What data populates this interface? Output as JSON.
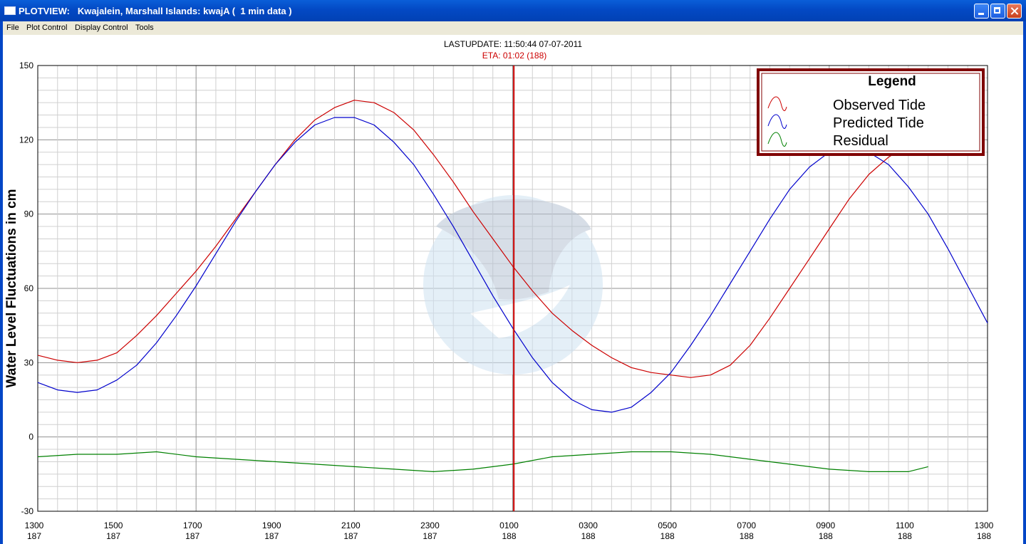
{
  "window": {
    "title": "PLOTVIEW:   Kwajalein, Marshall Islands: kwajA (  1 min data )",
    "menu": [
      "File",
      "Plot Control",
      "Display Control",
      "Tools"
    ]
  },
  "chart_data": {
    "type": "line",
    "header_text": "LASTUPDATE: 11:50:44  07-07-2011",
    "eta_text": "ETA: 01:02 (188)",
    "ylabel": "Water Level Fluctuations in cm",
    "ylim": [
      -30,
      150
    ],
    "y_ticks": [
      150,
      120,
      90,
      60,
      30,
      0,
      -30
    ],
    "x_tick_labels": [
      [
        "1300",
        "187"
      ],
      [
        "1500",
        "187"
      ],
      [
        "1700",
        "187"
      ],
      [
        "1900",
        "187"
      ],
      [
        "2100",
        "187"
      ],
      [
        "2300",
        "187"
      ],
      [
        "0100",
        "188"
      ],
      [
        "0300",
        "188"
      ],
      [
        "0500",
        "188"
      ],
      [
        "0700",
        "188"
      ],
      [
        "0900",
        "188"
      ],
      [
        "1100",
        "188"
      ],
      [
        "1300",
        "188"
      ]
    ],
    "x_unit": "hours since 1300 day 187",
    "xlim": [
      0,
      24
    ],
    "eta_marker_x": 12.03,
    "grid": true,
    "legend": {
      "title": "Legend",
      "position": "top-right",
      "entries": [
        "Observed Tide",
        "Predicted Tide",
        "Residual"
      ]
    },
    "colors": {
      "observed": "#cc0000",
      "predicted": "#0000cc",
      "residual": "#008000",
      "eta_line": "#cc0000",
      "legend_border": "#800000"
    },
    "series": [
      {
        "name": "Observed Tide",
        "x": [
          0,
          0.5,
          1,
          1.5,
          2,
          2.5,
          3,
          3.5,
          4,
          4.5,
          5,
          5.5,
          6,
          6.5,
          7,
          7.5,
          8,
          8.5,
          9,
          9.5,
          10,
          10.5,
          11,
          11.5,
          12,
          12.5,
          13,
          13.5,
          14,
          14.5,
          15,
          15.5,
          16,
          16.5,
          17,
          17.5,
          18,
          18.5,
          19,
          19.5,
          20,
          20.5,
          21,
          21.5,
          22,
          22.5
        ],
        "y": [
          33,
          31,
          30,
          31,
          34,
          41,
          49,
          58,
          67,
          77,
          88,
          99,
          110,
          120,
          128,
          133,
          136,
          135,
          131,
          124,
          114,
          103,
          91,
          80,
          69,
          59,
          50,
          43,
          37,
          32,
          28,
          26,
          25,
          24,
          25,
          29,
          37,
          48,
          60,
          72,
          84,
          96,
          106,
          113,
          118,
          121
        ]
      },
      {
        "name": "Predicted Tide",
        "x": [
          0,
          0.5,
          1,
          1.5,
          2,
          2.5,
          3,
          3.5,
          4,
          4.5,
          5,
          5.5,
          6,
          6.5,
          7,
          7.5,
          8,
          8.5,
          9,
          9.5,
          10,
          10.5,
          11,
          11.5,
          12,
          12.5,
          13,
          13.5,
          14,
          14.5,
          15,
          15.5,
          16,
          16.5,
          17,
          17.5,
          18,
          18.5,
          19,
          19.5,
          20,
          20.5,
          21,
          21.5,
          22,
          22.5,
          23,
          23.5,
          24
        ],
        "y": [
          22,
          19,
          18,
          19,
          23,
          29,
          38,
          49,
          61,
          74,
          87,
          99,
          110,
          119,
          126,
          129,
          129,
          126,
          119,
          110,
          98,
          85,
          71,
          57,
          44,
          32,
          22,
          15,
          11,
          10,
          12,
          18,
          26,
          37,
          49,
          62,
          75,
          88,
          100,
          109,
          115,
          117,
          115,
          110,
          101,
          90,
          76,
          61,
          46
        ]
      },
      {
        "name": "Residual",
        "x": [
          0,
          1,
          2,
          3,
          4,
          5,
          6,
          7,
          8,
          9,
          10,
          11,
          12,
          13,
          14,
          15,
          16,
          17,
          18,
          19,
          20,
          21,
          22,
          22.5
        ],
        "y": [
          -8,
          -7,
          -7,
          -6,
          -8,
          -9,
          -10,
          -11,
          -12,
          -13,
          -14,
          -13,
          -11,
          -8,
          -7,
          -6,
          -6,
          -7,
          -9,
          -11,
          -13,
          -14,
          -14,
          -12
        ]
      }
    ]
  }
}
